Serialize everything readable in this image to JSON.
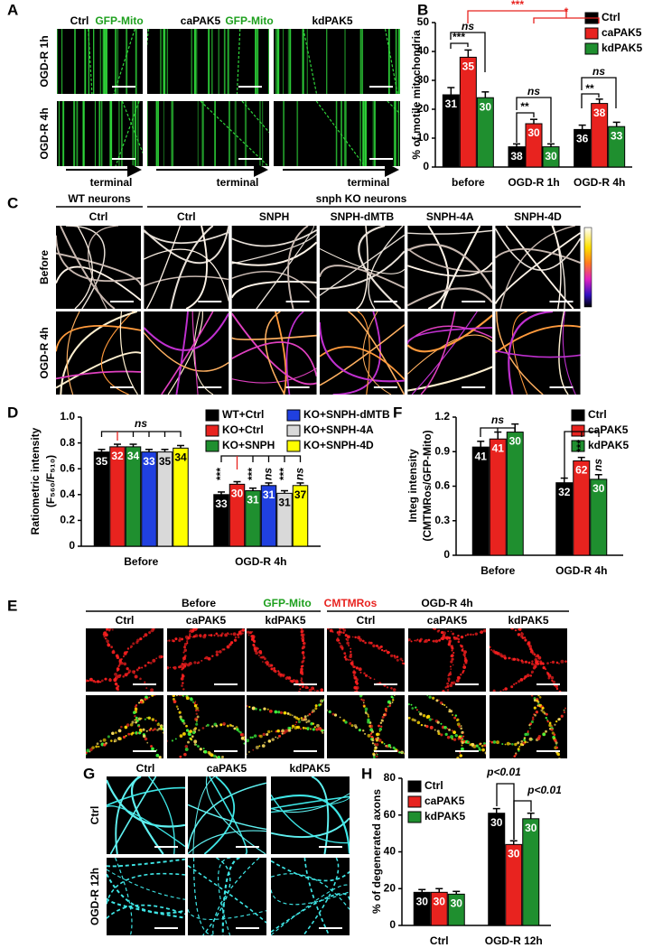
{
  "panels": {
    "A": {
      "letter": "A",
      "columns": [
        "Ctrl",
        "GFP-Mito",
        "caPAK5",
        "GFP-Mito",
        "kdPAK5"
      ],
      "rows": [
        "OGD-R 1h",
        "OGD-R 4h"
      ],
      "arrow_labels": [
        "terminal",
        "terminal",
        "terminal"
      ]
    },
    "C": {
      "letter": "C",
      "groups": [
        "WT neurons",
        "snph KO neurons"
      ],
      "columns": [
        "Ctrl",
        "Ctrl",
        "SNPH",
        "SNPH-dMTB",
        "SNPH-4A",
        "SNPH-4D"
      ],
      "rows": [
        "Before",
        "OGD-R 4h"
      ]
    },
    "E": {
      "letter": "E",
      "groups": [
        "Before",
        "GFP-Mito",
        "CMTMRos",
        "OGD-R 4h"
      ],
      "columns": [
        "Ctrl",
        "caPAK5",
        "kdPAK5",
        "Ctrl",
        "caPAK5",
        "kdPAK5"
      ]
    },
    "G": {
      "letter": "G",
      "columns": [
        "Ctrl",
        "caPAK5",
        "kdPAK5"
      ],
      "rows": [
        "Ctrl",
        "OGD-R 12h"
      ]
    }
  },
  "chart_data": [
    {
      "type": "bar",
      "letter": "B",
      "y_label": [
        "% of motile mitochondria"
      ],
      "categories": [
        "before",
        "OGD-R 1h",
        "OGD-R 4h"
      ],
      "ylim": [
        0,
        50
      ],
      "yticks": [
        0,
        10,
        20,
        30,
        40,
        50
      ],
      "series": [
        {
          "name": "Ctrl",
          "color": "#000000",
          "values": [
            25,
            7,
            13
          ],
          "errors": [
            2.5,
            1,
            1.5
          ],
          "n_labels": [
            31,
            38,
            36
          ]
        },
        {
          "name": "caPAK5",
          "color": "#e8231f",
          "values": [
            38,
            15,
            22
          ],
          "errors": [
            2.5,
            1.5,
            1.5
          ],
          "n_labels": [
            35,
            30,
            38
          ]
        },
        {
          "name": "kdPAK5",
          "color": "#1f8f2f",
          "values": [
            24,
            7,
            14
          ],
          "errors": [
            2,
            1,
            1.5
          ],
          "n_labels": [
            30,
            30,
            33
          ]
        }
      ],
      "annotations": [
        "***",
        "*",
        "***",
        "ns",
        "**",
        "ns",
        "**",
        "ns"
      ]
    },
    {
      "type": "bar",
      "letter": "D",
      "y_label": [
        "Ratiometric intensity",
        "(F₅₆₀/F₅₁₀)"
      ],
      "categories": [
        "Before",
        "OGD-R 4h"
      ],
      "ylim": [
        0,
        1
      ],
      "yticks": [
        0,
        0.2,
        0.4,
        0.6,
        0.8,
        {
          "value": 1,
          "label": "1.0"
        }
      ],
      "series": [
        {
          "name": "WT+Ctrl",
          "color": "#000000",
          "values": [
            0.73,
            0.4
          ],
          "errors": [
            0.02,
            0.02
          ],
          "n_labels": [
            35,
            33
          ]
        },
        {
          "name": "KO+Ctrl",
          "color": "#e8231f",
          "values": [
            0.77,
            0.48
          ],
          "errors": [
            0.02,
            0.02
          ],
          "n_labels": [
            32,
            30
          ]
        },
        {
          "name": "KO+SNPH",
          "color": "#1f8f2f",
          "values": [
            0.77,
            0.43
          ],
          "errors": [
            0.02,
            0.02
          ],
          "n_labels": [
            34,
            31
          ]
        },
        {
          "name": "KO+SNPH-dMTB",
          "color": "#2040e0",
          "values": [
            0.73,
            0.47
          ],
          "errors": [
            0.02,
            0.02
          ],
          "n_labels": [
            33,
            31
          ]
        },
        {
          "name": "KO+SNPH-4A",
          "color": "#d9d9d9",
          "values": [
            0.73,
            0.41
          ],
          "errors": [
            0.02,
            0.02
          ],
          "n_labels": [
            35,
            31
          ]
        },
        {
          "name": "KO+SNPH-4D",
          "color": "#ffff00",
          "values": [
            0.76,
            0.47
          ],
          "errors": [
            0.02,
            0.02
          ],
          "n_labels": [
            34,
            37
          ]
        }
      ],
      "annotations": [
        "ns",
        "***",
        "***",
        "ns",
        "***",
        "ns"
      ]
    },
    {
      "type": "bar",
      "letter": "F",
      "y_label": [
        "Integ intensity",
        "(CMTMRos/GFP-Mito)"
      ],
      "categories": [
        "Before",
        "OGD-R 4h"
      ],
      "ylim": [
        0,
        1.2
      ],
      "yticks": [
        0,
        0.3,
        0.6,
        0.9,
        1.2
      ],
      "series": [
        {
          "name": "Ctrl",
          "color": "#000000",
          "values": [
            0.94,
            0.63
          ],
          "errors": [
            0.05,
            0.04
          ],
          "n_labels": [
            41,
            32
          ]
        },
        {
          "name": "caPAK5",
          "color": "#e8231f",
          "values": [
            1.01,
            0.82
          ],
          "errors": [
            0.06,
            0.03
          ],
          "n_labels": [
            41,
            62
          ]
        },
        {
          "name": "kdPAK5",
          "color": "#1f8f2f",
          "values": [
            1.07,
            0.66
          ],
          "errors": [
            0.07,
            0.04
          ],
          "n_labels": [
            30,
            30
          ]
        }
      ],
      "annotations": [
        "ns",
        "***",
        "ns"
      ]
    },
    {
      "type": "bar",
      "letter": "H",
      "y_label": [
        "% of degenerated axons"
      ],
      "categories": [
        "Ctrl",
        "OGD-R 12h"
      ],
      "ylim": [
        0,
        80
      ],
      "yticks": [
        0,
        20,
        40,
        60,
        80
      ],
      "series": [
        {
          "name": "Ctrl",
          "color": "#000000",
          "values": [
            18,
            61
          ],
          "errors": [
            1.5,
            2.5
          ],
          "n_labels": [
            30,
            30
          ]
        },
        {
          "name": "caPAK5",
          "color": "#e8231f",
          "values": [
            18,
            44
          ],
          "errors": [
            2,
            2
          ],
          "n_labels": [
            30,
            30
          ]
        },
        {
          "name": "kdPAK5",
          "color": "#1f8f2f",
          "values": [
            17,
            58
          ],
          "errors": [
            1.5,
            3
          ],
          "n_labels": [
            30,
            30
          ]
        }
      ],
      "annotations": [
        "p<0.01",
        "p<0.01"
      ]
    }
  ]
}
